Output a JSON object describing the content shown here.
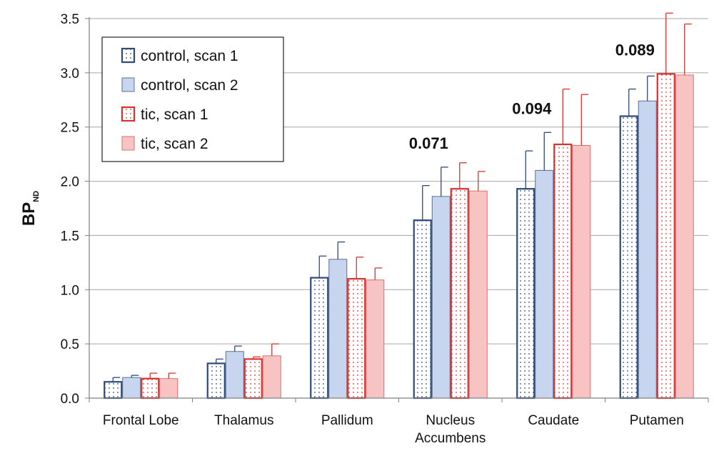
{
  "chart_data": {
    "type": "bar",
    "title": "",
    "xlabel": "",
    "ylabel": {
      "main": "BP",
      "subscript": "ND"
    },
    "ylim": [
      0,
      3.5
    ],
    "yticks": [
      "0.0",
      "0.5",
      "1.0",
      "1.5",
      "2.0",
      "2.5",
      "3.0",
      "3.5"
    ],
    "ytick_values": [
      0,
      0.5,
      1.0,
      1.5,
      2.0,
      2.5,
      3.0,
      3.5
    ],
    "grid": "horizontal",
    "legend_position": "top-left",
    "categories": [
      [
        "Frontal Lobe"
      ],
      [
        "Thalamus"
      ],
      [
        "Pallidum"
      ],
      [
        "Nucleus",
        "Accumbens"
      ],
      [
        "Caudate"
      ],
      [
        "Putamen"
      ]
    ],
    "series": [
      {
        "name": "control, scan 1",
        "values": [
          0.15,
          0.32,
          1.11,
          1.64,
          1.93,
          2.6
        ],
        "errors": [
          0.04,
          0.04,
          0.2,
          0.32,
          0.35,
          0.25
        ],
        "fill": "dotted",
        "color": "#2e4a7a",
        "fill_color": "#ffffff",
        "error_color": "#2e4a7a"
      },
      {
        "name": "control, scan 2",
        "values": [
          0.19,
          0.43,
          1.28,
          1.86,
          2.1,
          2.74
        ],
        "errors": [
          0.02,
          0.05,
          0.16,
          0.27,
          0.35,
          0.23
        ],
        "fill": "solid",
        "color": "#5a6f94",
        "fill_color": "#c7d6ee",
        "error_color": "#2e4a7a"
      },
      {
        "name": "tic, scan 1",
        "values": [
          0.18,
          0.36,
          1.1,
          1.93,
          2.34,
          2.99
        ],
        "errors": [
          0.05,
          0.02,
          0.2,
          0.24,
          0.51,
          0.56
        ],
        "fill": "dotted",
        "color": "#d9322e",
        "fill_color": "#ffffff",
        "error_color": "#d9322e"
      },
      {
        "name": "tic, scan 2",
        "values": [
          0.18,
          0.39,
          1.09,
          1.91,
          2.33,
          2.98
        ],
        "errors": [
          0.05,
          0.11,
          0.11,
          0.18,
          0.47,
          0.47
        ],
        "fill": "solid",
        "color": "#d96f6f",
        "fill_color": "#f7c3c3",
        "error_color": "#d9322e"
      }
    ],
    "annotations": [
      {
        "text": "0.071",
        "category_index": 3
      },
      {
        "text": "0.094",
        "category_index": 4
      },
      {
        "text": "0.089",
        "category_index": 5
      }
    ]
  }
}
